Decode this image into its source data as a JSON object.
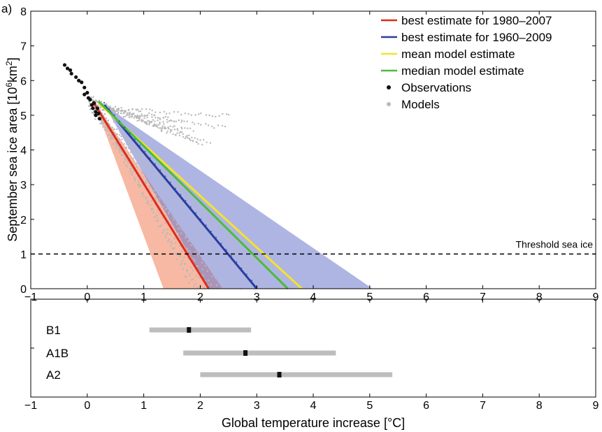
{
  "panel_label": "a)",
  "chart_data": [
    {
      "type": "line",
      "xlabel": "",
      "ylabel": "September sea ice area [10",
      "ylabel_sup1": "6",
      "ylabel_mid": "km",
      "ylabel_sup2": "2",
      "ylabel_end": "]",
      "xlim": [
        -1,
        9
      ],
      "ylim": [
        0,
        8
      ],
      "xticks": [
        "−1",
        "0",
        "1",
        "2",
        "3",
        "4",
        "5",
        "6",
        "7",
        "8",
        "9"
      ],
      "yticks": [
        "0",
        "1",
        "2",
        "3",
        "4",
        "5",
        "6",
        "7",
        "8"
      ],
      "grid": false,
      "legend_position": "top-right",
      "threshold": {
        "y": 1,
        "label": "Threshold sea ice"
      },
      "series": [
        {
          "name": "best estimate for 1980–2007",
          "color": "#e02a1c",
          "points": [
            [
              0.1,
              5.4
            ],
            [
              2.15,
              0
            ]
          ]
        },
        {
          "name": "best estimate for 1960–2009",
          "color": "#2a3e9e",
          "points": [
            [
              0.3,
              5.3
            ],
            [
              3.0,
              0
            ]
          ]
        },
        {
          "name": "mean model estimate",
          "color": "#f5e32a",
          "points": [
            [
              0.2,
              5.35
            ],
            [
              3.8,
              0
            ]
          ]
        },
        {
          "name": "median model estimate",
          "color": "#4cbb3c",
          "points": [
            [
              0.2,
              5.4
            ],
            [
              3.55,
              0
            ]
          ]
        },
        {
          "name": "Observations",
          "color": "#111111",
          "type": "scatter",
          "points": [
            [
              -0.4,
              6.45
            ],
            [
              -0.35,
              6.35
            ],
            [
              -0.3,
              6.3
            ],
            [
              -0.28,
              6.2
            ],
            [
              -0.2,
              6.1
            ],
            [
              -0.15,
              6.0
            ],
            [
              -0.1,
              5.95
            ],
            [
              -0.05,
              5.8
            ],
            [
              -0.05,
              5.6
            ],
            [
              0.0,
              5.65
            ],
            [
              0.02,
              5.5
            ],
            [
              0.05,
              5.45
            ],
            [
              0.08,
              5.3
            ],
            [
              0.1,
              5.2
            ],
            [
              0.12,
              5.35
            ],
            [
              0.15,
              5.1
            ],
            [
              0.18,
              5.2
            ],
            [
              0.2,
              5.05
            ],
            [
              0.22,
              4.9
            ],
            [
              0.15,
              5.0
            ]
          ]
        },
        {
          "name": "Models",
          "color": "#b8b8b8",
          "type": "scatter"
        }
      ],
      "bands": [
        {
          "color": "#f28a66",
          "opacity": 0.6,
          "polygon": [
            [
              0.1,
              5.45
            ],
            [
              1.35,
              0
            ],
            [
              2.4,
              0
            ]
          ]
        },
        {
          "color": "#6b78cc",
          "opacity": 0.55,
          "polygon": [
            [
              0.3,
              5.3
            ],
            [
              2.15,
              0
            ],
            [
              5.05,
              0
            ]
          ]
        }
      ]
    },
    {
      "type": "bar",
      "xlabel": "Global temperature increase [°C]",
      "xlim": [
        -1,
        9
      ],
      "xticks": [
        "−1",
        "0",
        "1",
        "2",
        "3",
        "4",
        "5",
        "6",
        "7",
        "8",
        "9"
      ],
      "categories": [
        "B1",
        "A1B",
        "A2"
      ],
      "ranges": [
        [
          1.1,
          2.9
        ],
        [
          1.7,
          4.4
        ],
        [
          2.0,
          5.4
        ]
      ],
      "best": [
        1.8,
        2.8,
        3.4
      ],
      "range_color": "#bdbdbd",
      "best_color": "#111111"
    }
  ]
}
